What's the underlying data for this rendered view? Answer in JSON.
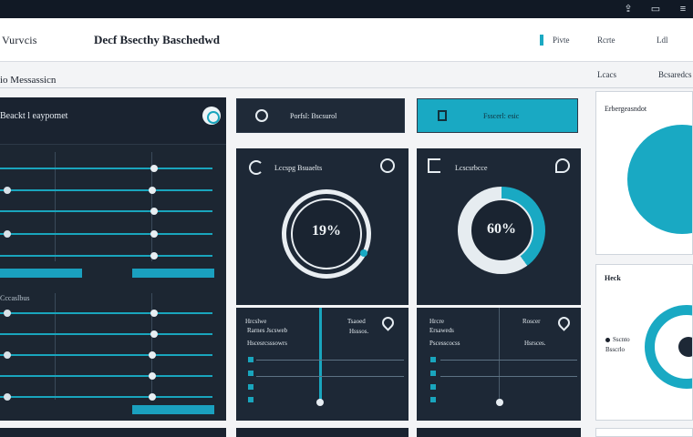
{
  "topbar": {
    "icons": [
      "share-icon",
      "chat-icon",
      "menu-icon"
    ]
  },
  "header": {
    "brand": "Vurvcis",
    "title": "Decf Bsecthy Baschedwd",
    "links": [
      "Pivte",
      "Rcrte",
      "Ldl"
    ]
  },
  "subheader": {
    "title": "io Messassicn",
    "tabs": [
      "Lcacs",
      "Bcsaredcs"
    ]
  },
  "left_panel": {
    "title": "Beackt l eaypomet",
    "section2": "Cccaslbus"
  },
  "cards": {
    "top1": {
      "label": "Porfsl: Bscsurol"
    },
    "top2": {
      "label": "Fsscerl: esic"
    },
    "donut1": {
      "title": "Lccspg Bsuaelts",
      "value": "19%"
    },
    "donut2": {
      "title": "Lcscsrbcce",
      "value": "60%"
    },
    "low1": {
      "line1": "Hrcslwe",
      "line2": "Rarnes Jscsweb",
      "line3": "Hscesrcsssowrs",
      "side": "Tsaoed",
      "side2": "Hsssos."
    },
    "low2": {
      "line1": "Hrcre",
      "line2": "Ersaweds",
      "line3": "Pscesscocss",
      "side": "Roscer",
      "side2": "Hsrsces."
    }
  },
  "right": {
    "card1_title": "Erbergeasndot",
    "card2_title": "Heck",
    "card2_lines": [
      "Sscnto",
      "Bsscrlo"
    ]
  },
  "colors": {
    "accent": "#19a9c3",
    "dark": "#1d2836"
  }
}
